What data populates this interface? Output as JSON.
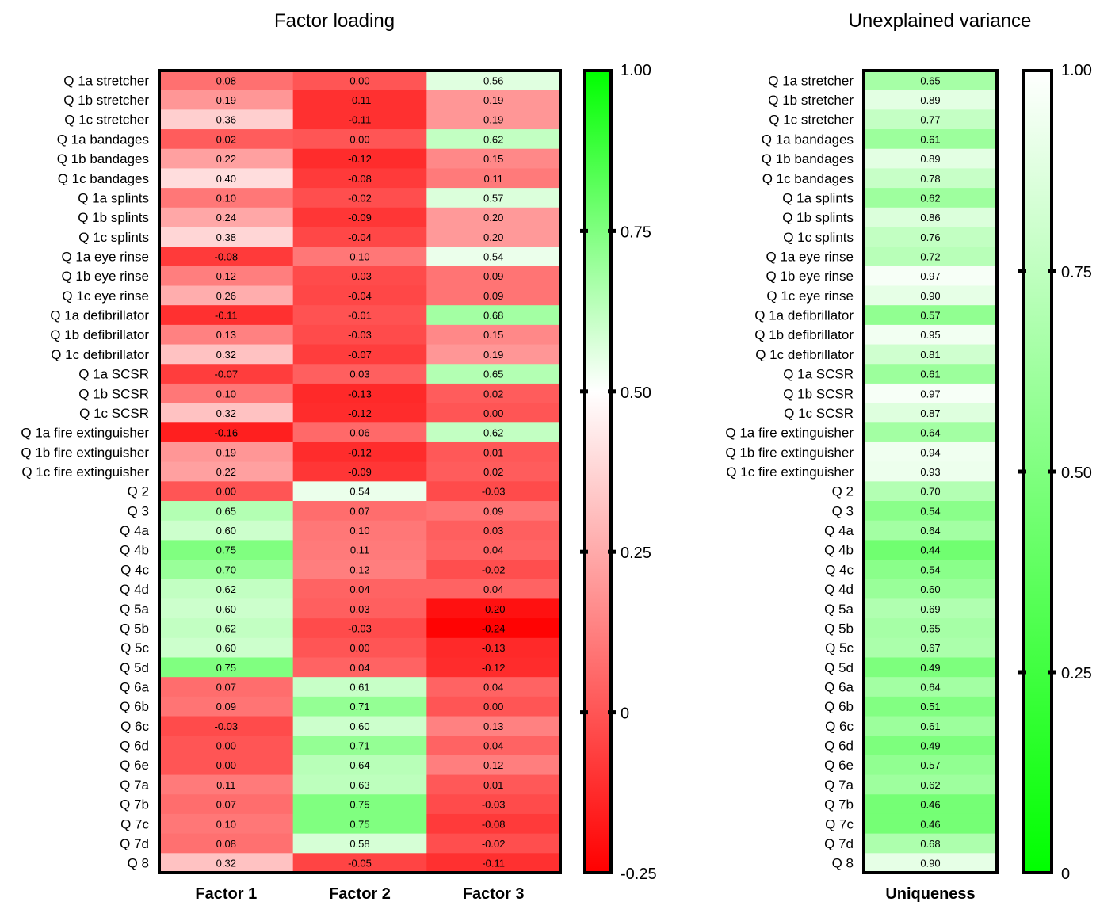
{
  "chart_data": [
    {
      "type": "heatmap",
      "title": "Factor loading",
      "columns": [
        "Factor 1",
        "Factor 2",
        "Factor 3"
      ],
      "rows": [
        "Q 1a stretcher",
        "Q 1b stretcher",
        "Q 1c stretcher",
        "Q 1a bandages",
        "Q 1b bandages",
        "Q 1c bandages",
        "Q 1a splints",
        "Q 1b splints",
        "Q 1c splints",
        "Q 1a eye rinse",
        "Q 1b eye rinse",
        "Q 1c eye rinse",
        "Q 1a defibrillator",
        "Q 1b defibrillator",
        "Q 1c defibrillator",
        "Q 1a SCSR",
        "Q 1b SCSR",
        "Q 1c SCSR",
        "Q 1a fire extinguisher",
        "Q 1b fire extinguisher",
        "Q 1c fire extinguisher",
        "Q 2",
        "Q 3",
        "Q 4a",
        "Q 4b",
        "Q 4c",
        "Q 4d",
        "Q 5a",
        "Q 5b",
        "Q 5c",
        "Q 5d",
        "Q 6a",
        "Q 6b",
        "Q 6c",
        "Q 6d",
        "Q 6e",
        "Q 7a",
        "Q 7b",
        "Q 7c",
        "Q 7d",
        "Q 8"
      ],
      "values": [
        [
          "0.08",
          "0.00",
          "0.56"
        ],
        [
          "0.19",
          "-0.11",
          "0.19"
        ],
        [
          "0.36",
          "-0.11",
          "0.19"
        ],
        [
          "0.02",
          "0.00",
          "0.62"
        ],
        [
          "0.22",
          "-0.12",
          "0.15"
        ],
        [
          "0.40",
          "-0.08",
          "0.11"
        ],
        [
          "0.10",
          "-0.02",
          "0.57"
        ],
        [
          "0.24",
          "-0.09",
          "0.20"
        ],
        [
          "0.38",
          "-0.04",
          "0.20"
        ],
        [
          "-0.08",
          "0.10",
          "0.54"
        ],
        [
          "0.12",
          "-0.03",
          "0.09"
        ],
        [
          "0.26",
          "-0.04",
          "0.09"
        ],
        [
          "-0.11",
          "-0.01",
          "0.68"
        ],
        [
          "0.13",
          "-0.03",
          "0.15"
        ],
        [
          "0.32",
          "-0.07",
          "0.19"
        ],
        [
          "-0.07",
          "0.03",
          "0.65"
        ],
        [
          "0.10",
          "-0.13",
          "0.02"
        ],
        [
          "0.32",
          "-0.12",
          "0.00"
        ],
        [
          "-0.16",
          "0.06",
          "0.62"
        ],
        [
          "0.19",
          "-0.12",
          "0.01"
        ],
        [
          "0.22",
          "-0.09",
          "0.02"
        ],
        [
          "0.00",
          "0.54",
          "-0.03"
        ],
        [
          "0.65",
          "0.07",
          "0.09"
        ],
        [
          "0.60",
          "0.10",
          "0.03"
        ],
        [
          "0.75",
          "0.11",
          "0.04"
        ],
        [
          "0.70",
          "0.12",
          "-0.02"
        ],
        [
          "0.62",
          "0.04",
          "0.04"
        ],
        [
          "0.60",
          "0.03",
          "-0.20"
        ],
        [
          "0.62",
          "-0.03",
          "-0.24"
        ],
        [
          "0.60",
          "0.00",
          "-0.13"
        ],
        [
          "0.75",
          "0.04",
          "-0.12"
        ],
        [
          "0.07",
          "0.61",
          "0.04"
        ],
        [
          "0.09",
          "0.71",
          "0.00"
        ],
        [
          "-0.03",
          "0.60",
          "0.13"
        ],
        [
          "0.00",
          "0.71",
          "0.04"
        ],
        [
          "0.00",
          "0.64",
          "0.12"
        ],
        [
          "0.11",
          "0.63",
          "0.01"
        ],
        [
          "0.07",
          "0.75",
          "-0.03"
        ],
        [
          "0.10",
          "0.75",
          "-0.08"
        ],
        [
          "0.08",
          "0.58",
          "-0.02"
        ],
        [
          "0.32",
          "-0.05",
          "-0.11"
        ]
      ],
      "colorbar": {
        "min": -0.25,
        "max": 1.0,
        "ticks": [
          "1.00",
          "0.75",
          "0.50",
          "0.25",
          "0",
          "-0.25"
        ],
        "colors": [
          "#ff0000",
          "#ffffff",
          "#00ff00"
        ]
      }
    },
    {
      "type": "heatmap",
      "title": "Unexplained variance",
      "columns": [
        "Uniqueness"
      ],
      "rows": [
        "Q 1a stretcher",
        "Q 1b stretcher",
        "Q 1c stretcher",
        "Q 1a bandages",
        "Q 1b bandages",
        "Q 1c bandages",
        "Q 1a splints",
        "Q 1b splints",
        "Q 1c splints",
        "Q 1a eye rinse",
        "Q 1b eye rinse",
        "Q 1c eye rinse",
        "Q 1a defibrillator",
        "Q 1b defibrillator",
        "Q 1c defibrillator",
        "Q 1a SCSR",
        "Q 1b SCSR",
        "Q 1c SCSR",
        "Q 1a fire extinguisher",
        "Q 1b fire extinguisher",
        "Q 1c fire extinguisher",
        "Q 2",
        "Q 3",
        "Q 4a",
        "Q 4b",
        "Q 4c",
        "Q 4d",
        "Q 5a",
        "Q 5b",
        "Q 5c",
        "Q 5d",
        "Q 6a",
        "Q 6b",
        "Q 6c",
        "Q 6d",
        "Q 6e",
        "Q 7a",
        "Q 7b",
        "Q 7c",
        "Q 7d",
        "Q 8"
      ],
      "values": [
        [
          "0.65"
        ],
        [
          "0.89"
        ],
        [
          "0.77"
        ],
        [
          "0.61"
        ],
        [
          "0.89"
        ],
        [
          "0.78"
        ],
        [
          "0.62"
        ],
        [
          "0.86"
        ],
        [
          "0.76"
        ],
        [
          "0.72"
        ],
        [
          "0.97"
        ],
        [
          "0.90"
        ],
        [
          "0.57"
        ],
        [
          "0.95"
        ],
        [
          "0.81"
        ],
        [
          "0.61"
        ],
        [
          "0.97"
        ],
        [
          "0.87"
        ],
        [
          "0.64"
        ],
        [
          "0.94"
        ],
        [
          "0.93"
        ],
        [
          "0.70"
        ],
        [
          "0.54"
        ],
        [
          "0.64"
        ],
        [
          "0.44"
        ],
        [
          "0.54"
        ],
        [
          "0.60"
        ],
        [
          "0.69"
        ],
        [
          "0.65"
        ],
        [
          "0.67"
        ],
        [
          "0.49"
        ],
        [
          "0.64"
        ],
        [
          "0.51"
        ],
        [
          "0.61"
        ],
        [
          "0.49"
        ],
        [
          "0.57"
        ],
        [
          "0.62"
        ],
        [
          "0.46"
        ],
        [
          "0.46"
        ],
        [
          "0.68"
        ],
        [
          "0.90"
        ]
      ],
      "colorbar": {
        "min": 0,
        "max": 1.0,
        "ticks": [
          "1.00",
          "0.75",
          "0.50",
          "0.25",
          "0"
        ],
        "colors": [
          "#00ff00",
          "#ffffff"
        ]
      }
    }
  ]
}
